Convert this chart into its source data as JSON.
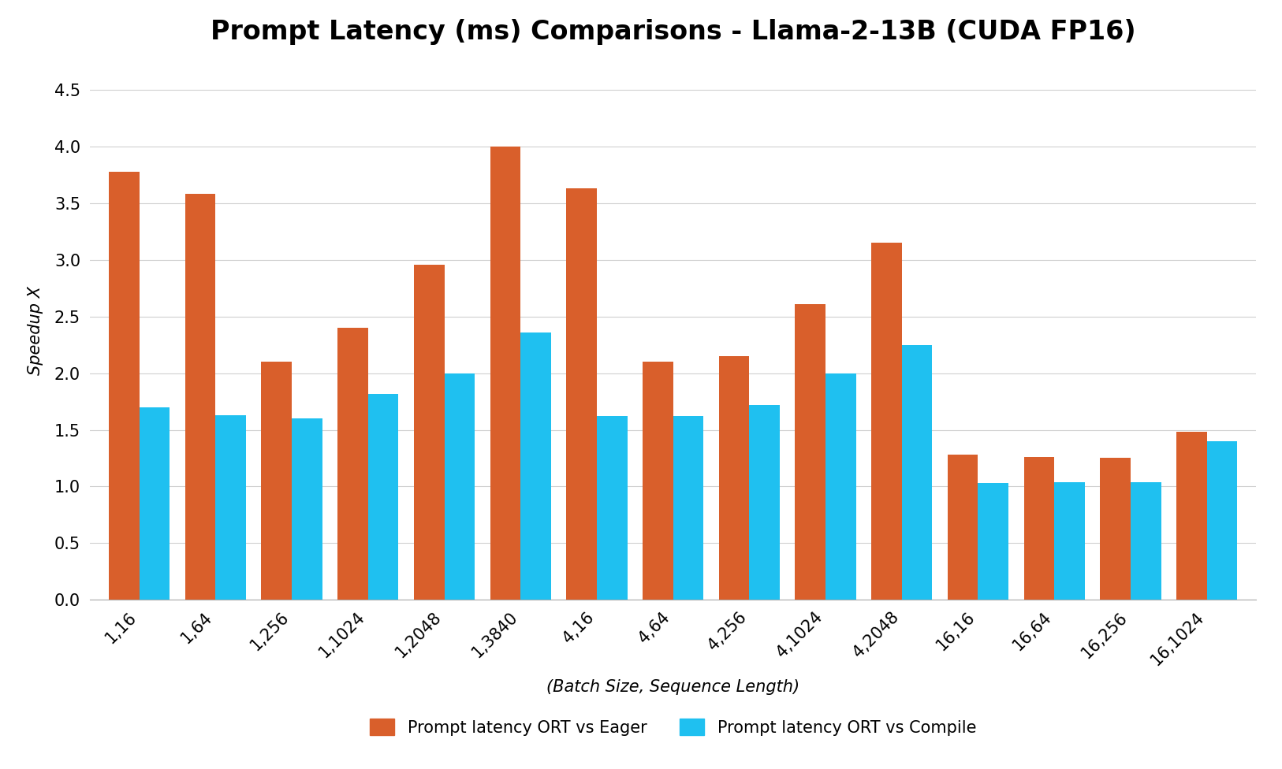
{
  "title": "Prompt Latency (ms) Comparisons - Llama-2-13B (CUDA FP16)",
  "xlabel": "(Batch Size, Sequence Length)",
  "ylabel": "Speedup X",
  "categories": [
    "1,16",
    "1,64",
    "1,256",
    "1,1024",
    "1,2048",
    "1,3840",
    "4,16",
    "4,64",
    "4,256",
    "4,1024",
    "4,2048",
    "16,16",
    "16,64",
    "16,256",
    "16,1024"
  ],
  "ort_vs_eager": [
    3.78,
    3.58,
    2.1,
    2.4,
    2.96,
    4.0,
    3.63,
    2.1,
    2.15,
    2.61,
    3.15,
    1.28,
    1.26,
    1.25,
    1.48
  ],
  "ort_vs_compile": [
    1.7,
    1.63,
    1.6,
    1.82,
    2.0,
    2.36,
    1.62,
    1.62,
    1.72,
    2.0,
    2.25,
    1.03,
    1.04,
    1.04,
    1.4
  ],
  "color_eager": "#D95F2B",
  "color_compile": "#1FC0F0",
  "ylim": [
    0,
    4.75
  ],
  "yticks": [
    0,
    0.5,
    1.0,
    1.5,
    2.0,
    2.5,
    3.0,
    3.5,
    4.0,
    4.5
  ],
  "legend_eager": "Prompt latency ORT vs Eager",
  "legend_compile": "Prompt latency ORT vs Compile",
  "title_fontsize": 24,
  "axis_label_fontsize": 15,
  "tick_fontsize": 15,
  "legend_fontsize": 15,
  "bar_width": 0.4,
  "background_color": "#ffffff",
  "grid_color": "#d0d0d0"
}
